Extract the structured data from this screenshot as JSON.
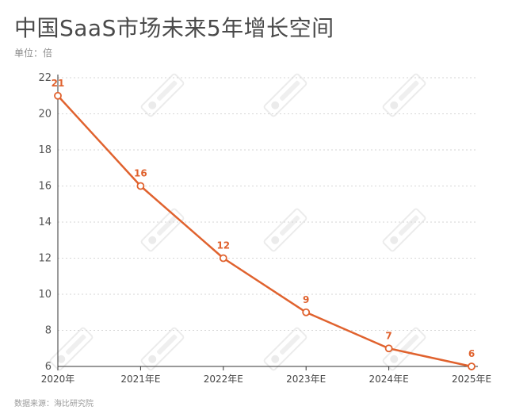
{
  "header": {
    "title": "中国SaaS市场未来5年增长空间",
    "unit": "单位：倍"
  },
  "footer": {
    "source": "数据来源：海比研究院"
  },
  "colors": {
    "line": "#e0622e",
    "grid": "#d6d6d6",
    "axis": "#333333"
  },
  "chart_data": {
    "type": "line",
    "title": "中国SaaS市场未来5年增长空间",
    "xlabel": "",
    "ylabel": "单位：倍",
    "categories": [
      "2020年",
      "2021年E",
      "2022年E",
      "2023年E",
      "2024年E",
      "2025年E"
    ],
    "series": [
      {
        "values": [
          21,
          16,
          12,
          9,
          7,
          6
        ]
      }
    ],
    "ylim": [
      6,
      22
    ],
    "yticks": [
      6,
      8,
      10,
      12,
      14,
      16,
      18,
      20,
      22
    ],
    "grid": true,
    "data_labels": true,
    "legend": "none"
  }
}
